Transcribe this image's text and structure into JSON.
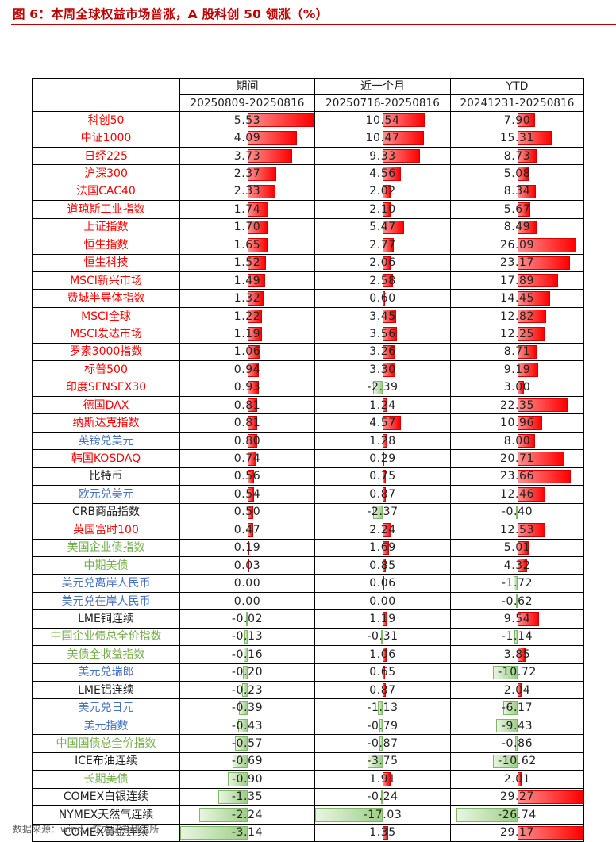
{
  "title": "图 6：本周全球权益市场普涨，A 股科创 50 领涨（%）",
  "source": "数据来源：wind，东方证券研究所",
  "colors": {
    "red": "#ff0000",
    "blue": "#4472c4",
    "green": "#70ad47",
    "dark": "#222222"
  },
  "chart_data": {
    "type": "table",
    "columns": [
      {
        "name": "期间",
        "range": "20250809-20250816"
      },
      {
        "name": "近一个月",
        "range": "20250716-20250816"
      },
      {
        "name": "YTD",
        "range": "20241231-20250816"
      }
    ],
    "rows": [
      {
        "name": "科创50",
        "color": "red",
        "values": [
          "5.53",
          "10.54",
          "7.90"
        ]
      },
      {
        "name": "中证1000",
        "color": "red",
        "values": [
          "4.09",
          "10.47",
          "15.31"
        ]
      },
      {
        "name": "日经225",
        "color": "red",
        "values": [
          "3.73",
          "9.33",
          "8.73"
        ]
      },
      {
        "name": "沪深300",
        "color": "red",
        "values": [
          "2.37",
          "4.56",
          "5.08"
        ]
      },
      {
        "name": "法国CAC40",
        "color": "red",
        "values": [
          "2.33",
          "2.02",
          "8.34"
        ]
      },
      {
        "name": "道琼斯工业指数",
        "color": "red",
        "values": [
          "1.74",
          "2.10",
          "5.67"
        ]
      },
      {
        "name": "上证指数",
        "color": "red",
        "values": [
          "1.70",
          "5.47",
          "8.49"
        ]
      },
      {
        "name": "恒生指数",
        "color": "red",
        "values": [
          "1.65",
          "2.77",
          "26.09"
        ]
      },
      {
        "name": "恒生科技",
        "color": "red",
        "values": [
          "1.52",
          "2.06",
          "23.17"
        ]
      },
      {
        "name": "MSCI新兴市场",
        "color": "red",
        "values": [
          "1.49",
          "2.58",
          "17.89"
        ]
      },
      {
        "name": "费城半导体指数",
        "color": "red",
        "values": [
          "1.32",
          "0.60",
          "14.45"
        ]
      },
      {
        "name": "MSCI全球",
        "color": "red",
        "values": [
          "1.22",
          "3.45",
          "12.82"
        ]
      },
      {
        "name": "MSCI发达市场",
        "color": "red",
        "values": [
          "1.19",
          "3.56",
          "12.25"
        ]
      },
      {
        "name": "罗素3000指数",
        "color": "red",
        "values": [
          "1.06",
          "3.26",
          "8.71"
        ]
      },
      {
        "name": "标普500",
        "color": "red",
        "values": [
          "0.94",
          "3.30",
          "9.19"
        ]
      },
      {
        "name": "印度SENSEX30",
        "color": "red",
        "values": [
          "0.93",
          "-2.39",
          "3.00"
        ]
      },
      {
        "name": "德国DAX",
        "color": "red",
        "values": [
          "0.81",
          "1.24",
          "22.35"
        ]
      },
      {
        "name": "纳斯达克指数",
        "color": "red",
        "values": [
          "0.81",
          "4.57",
          "10.96"
        ]
      },
      {
        "name": "英镑兑美元",
        "color": "blue",
        "values": [
          "0.80",
          "1.28",
          "8.00"
        ]
      },
      {
        "name": "韩国KOSDAQ",
        "color": "red",
        "values": [
          "0.74",
          "0.29",
          "20.71"
        ]
      },
      {
        "name": "比特币",
        "color": "dark",
        "values": [
          "0.56",
          "0.75",
          "23.66"
        ]
      },
      {
        "name": "欧元兑美元",
        "color": "blue",
        "values": [
          "0.54",
          "0.87",
          "12.46"
        ]
      },
      {
        "name": "CRB商品指数",
        "color": "dark",
        "values": [
          "0.50",
          "-2.37",
          "-0.40"
        ]
      },
      {
        "name": "英国富时100",
        "color": "red",
        "values": [
          "0.47",
          "2.24",
          "12.53"
        ]
      },
      {
        "name": "美国企业债指数",
        "color": "green",
        "values": [
          "0.19",
          "1.69",
          "5.01"
        ]
      },
      {
        "name": "中期美债",
        "color": "green",
        "values": [
          "0.03",
          "0.85",
          "4.32"
        ]
      },
      {
        "name": "美元兑离岸人民币",
        "color": "blue",
        "values": [
          "0.00",
          "0.06",
          "-1.72"
        ]
      },
      {
        "name": "美元兑在岸人民币",
        "color": "blue",
        "values": [
          "0.00",
          "0.00",
          "-0.62"
        ]
      },
      {
        "name": "LME铜连续",
        "color": "dark",
        "values": [
          "-0.02",
          "1.19",
          "9.54"
        ]
      },
      {
        "name": "中国企业债总全价指数",
        "color": "green",
        "values": [
          "-0.13",
          "-0.31",
          "-1.14"
        ]
      },
      {
        "name": "美债全收益指数",
        "color": "green",
        "values": [
          "-0.16",
          "1.06",
          "3.85"
        ]
      },
      {
        "name": "美元兑瑞郎",
        "color": "blue",
        "values": [
          "-0.20",
          "0.65",
          "-10.72"
        ]
      },
      {
        "name": "LME铝连续",
        "color": "dark",
        "values": [
          "-0.23",
          "0.87",
          "2.04"
        ]
      },
      {
        "name": "美元兑日元",
        "color": "blue",
        "values": [
          "-0.39",
          "-1.13",
          "-6.17"
        ]
      },
      {
        "name": "美元指数",
        "color": "blue",
        "values": [
          "-0.43",
          "-0.79",
          "-9.43"
        ]
      },
      {
        "name": "中国国债总全价指数",
        "color": "green",
        "values": [
          "-0.57",
          "-0.87",
          "-0.86"
        ]
      },
      {
        "name": "ICE布油连续",
        "color": "dark",
        "values": [
          "-0.69",
          "-3.75",
          "-10.62"
        ]
      },
      {
        "name": "长期美债",
        "color": "green",
        "values": [
          "-0.90",
          "1.91",
          "2.01"
        ]
      },
      {
        "name": "COMEX白银连续",
        "color": "dark",
        "values": [
          "-1.35",
          "-0.24",
          "29.27"
        ]
      },
      {
        "name": "NYMEX天然气连续",
        "color": "dark",
        "values": [
          "-2.24",
          "-17.03",
          "-26.74"
        ]
      },
      {
        "name": "COMEX黄金连续",
        "color": "dark",
        "values": [
          "-3.14",
          "1.35",
          "29.17"
        ]
      }
    ]
  }
}
